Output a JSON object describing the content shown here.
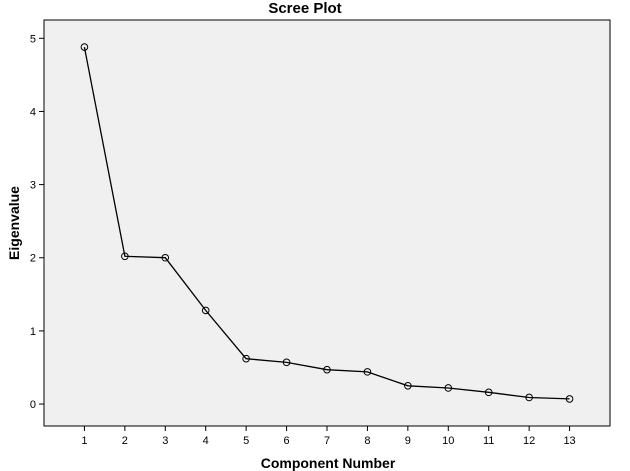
{
  "chart_data": {
    "type": "line",
    "title": "Scree Plot",
    "xlabel": "Component Number",
    "ylabel": "Eigenvalue",
    "x": [
      1,
      2,
      3,
      4,
      5,
      6,
      7,
      8,
      9,
      10,
      11,
      12,
      13
    ],
    "xlim": [
      0,
      14
    ],
    "ylim": [
      -0.3,
      5.25
    ],
    "yticks": [
      0,
      1,
      2,
      3,
      4,
      5
    ],
    "series": [
      {
        "values": [
          4.88,
          2.02,
          2.0,
          1.28,
          0.62,
          0.57,
          0.47,
          0.44,
          0.25,
          0.22,
          0.16,
          0.09,
          0.07
        ]
      }
    ],
    "grid": false,
    "legend": "none",
    "colors": {
      "plot_background": "#f0f0f0",
      "line": "#000000",
      "marker_stroke": "#000000",
      "frame": "#000000"
    }
  }
}
